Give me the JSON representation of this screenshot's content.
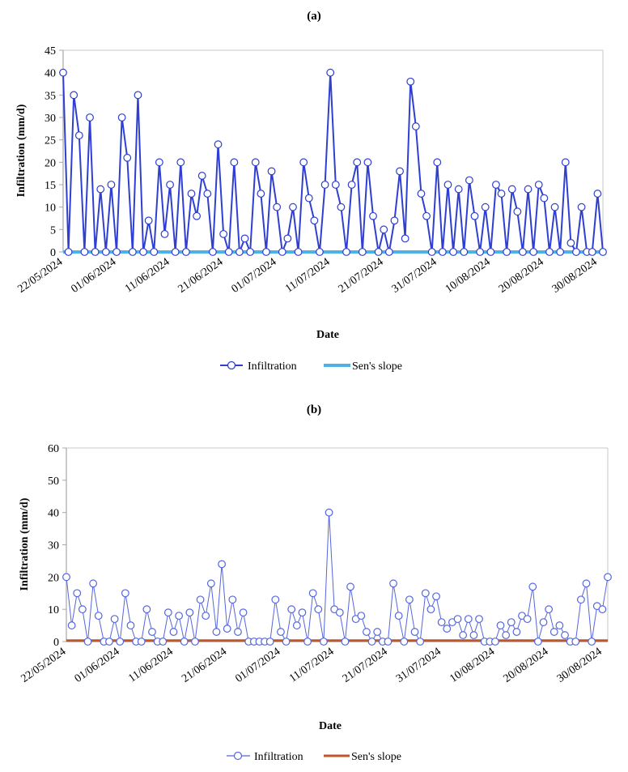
{
  "chart_data": [
    {
      "panel": "(a)",
      "type": "line",
      "title": "(a)",
      "xlabel": "Date",
      "ylabel": "Infiltration (mm/d)",
      "ylim": [
        0,
        45
      ],
      "yticks": [
        0,
        5,
        10,
        15,
        20,
        25,
        30,
        35,
        40,
        45
      ],
      "x_start": "22/05/2024",
      "x_end": "31/08/2024",
      "xtick_labels": [
        "22/05/2024",
        "01/06/2024",
        "11/06/2024",
        "21/06/2024",
        "01/07/2024",
        "11/07/2024",
        "21/07/2024",
        "31/07/2024",
        "10/08/2024",
        "20/08/2024",
        "30/08/2024"
      ],
      "grid": false,
      "legend": "bottom",
      "series": [
        {
          "name": "Infiltration",
          "color": "#2f3fd1",
          "marker": "open-circle",
          "values": [
            40,
            0,
            35,
            26,
            0,
            30,
            0,
            14,
            0,
            15,
            0,
            30,
            21,
            0,
            35,
            0,
            7,
            0,
            20,
            4,
            15,
            0,
            20,
            0,
            13,
            8,
            17,
            13,
            0,
            24,
            4,
            0,
            20,
            0,
            3,
            0,
            20,
            13,
            0,
            18,
            10,
            0,
            3,
            10,
            0,
            20,
            12,
            7,
            0,
            15,
            40,
            15,
            10,
            0,
            15,
            20,
            0,
            20,
            8,
            0,
            5,
            0,
            7,
            18,
            3,
            38,
            28,
            13,
            8,
            0,
            20,
            0,
            15,
            0,
            14,
            0,
            16,
            8,
            0,
            10,
            0,
            15,
            13,
            0,
            14,
            9,
            0,
            14,
            0,
            15,
            12,
            0,
            10,
            0,
            20,
            2,
            0,
            10,
            0,
            0,
            13,
            0
          ]
        },
        {
          "name": "Sen's slope",
          "color": "#4db3e6",
          "values": [
            0,
            0
          ]
        }
      ]
    },
    {
      "panel": "(b)",
      "type": "line",
      "title": "(b)",
      "xlabel": "Date",
      "ylabel": "Infiltration (mm/d)",
      "ylim": [
        0,
        60
      ],
      "yticks": [
        0,
        10,
        20,
        30,
        40,
        50,
        60
      ],
      "x_start": "22/05/2024",
      "x_end": "31/08/2024",
      "xtick_labels": [
        "22/05/2024",
        "01/06/2024",
        "11/06/2024",
        "21/06/2024",
        "01/07/2024",
        "11/07/2024",
        "21/07/2024",
        "31/07/2024",
        "10/08/2024",
        "20/08/2024",
        "30/08/2024"
      ],
      "grid": false,
      "legend": "bottom",
      "series": [
        {
          "name": "Infiltration",
          "color": "#5566dd",
          "marker": "open-circle",
          "values": [
            20,
            5,
            15,
            10,
            0,
            18,
            8,
            0,
            0,
            7,
            0,
            15,
            5,
            0,
            0,
            10,
            3,
            0,
            0,
            9,
            3,
            8,
            0,
            9,
            0,
            13,
            8,
            18,
            3,
            24,
            4,
            13,
            3,
            9,
            0,
            0,
            0,
            0,
            0,
            13,
            3,
            0,
            10,
            5,
            9,
            0,
            15,
            10,
            0,
            40,
            10,
            9,
            0,
            17,
            7,
            8,
            3,
            0,
            3,
            0,
            0,
            18,
            8,
            0,
            13,
            3,
            0,
            15,
            10,
            14,
            6,
            4,
            6,
            7,
            2,
            7,
            2,
            7,
            0,
            0,
            0,
            5,
            2,
            6,
            3,
            8,
            7,
            17,
            0,
            6,
            10,
            3,
            5,
            2,
            0,
            0,
            13,
            18,
            0,
            11,
            10,
            20
          ]
        },
        {
          "name": "Sen's slope",
          "color": "#c0562a",
          "values": [
            0.3,
            0.3
          ]
        }
      ]
    }
  ],
  "legend": {
    "infiltration_label": "Infiltration",
    "sens_label": "Sen's slope"
  }
}
